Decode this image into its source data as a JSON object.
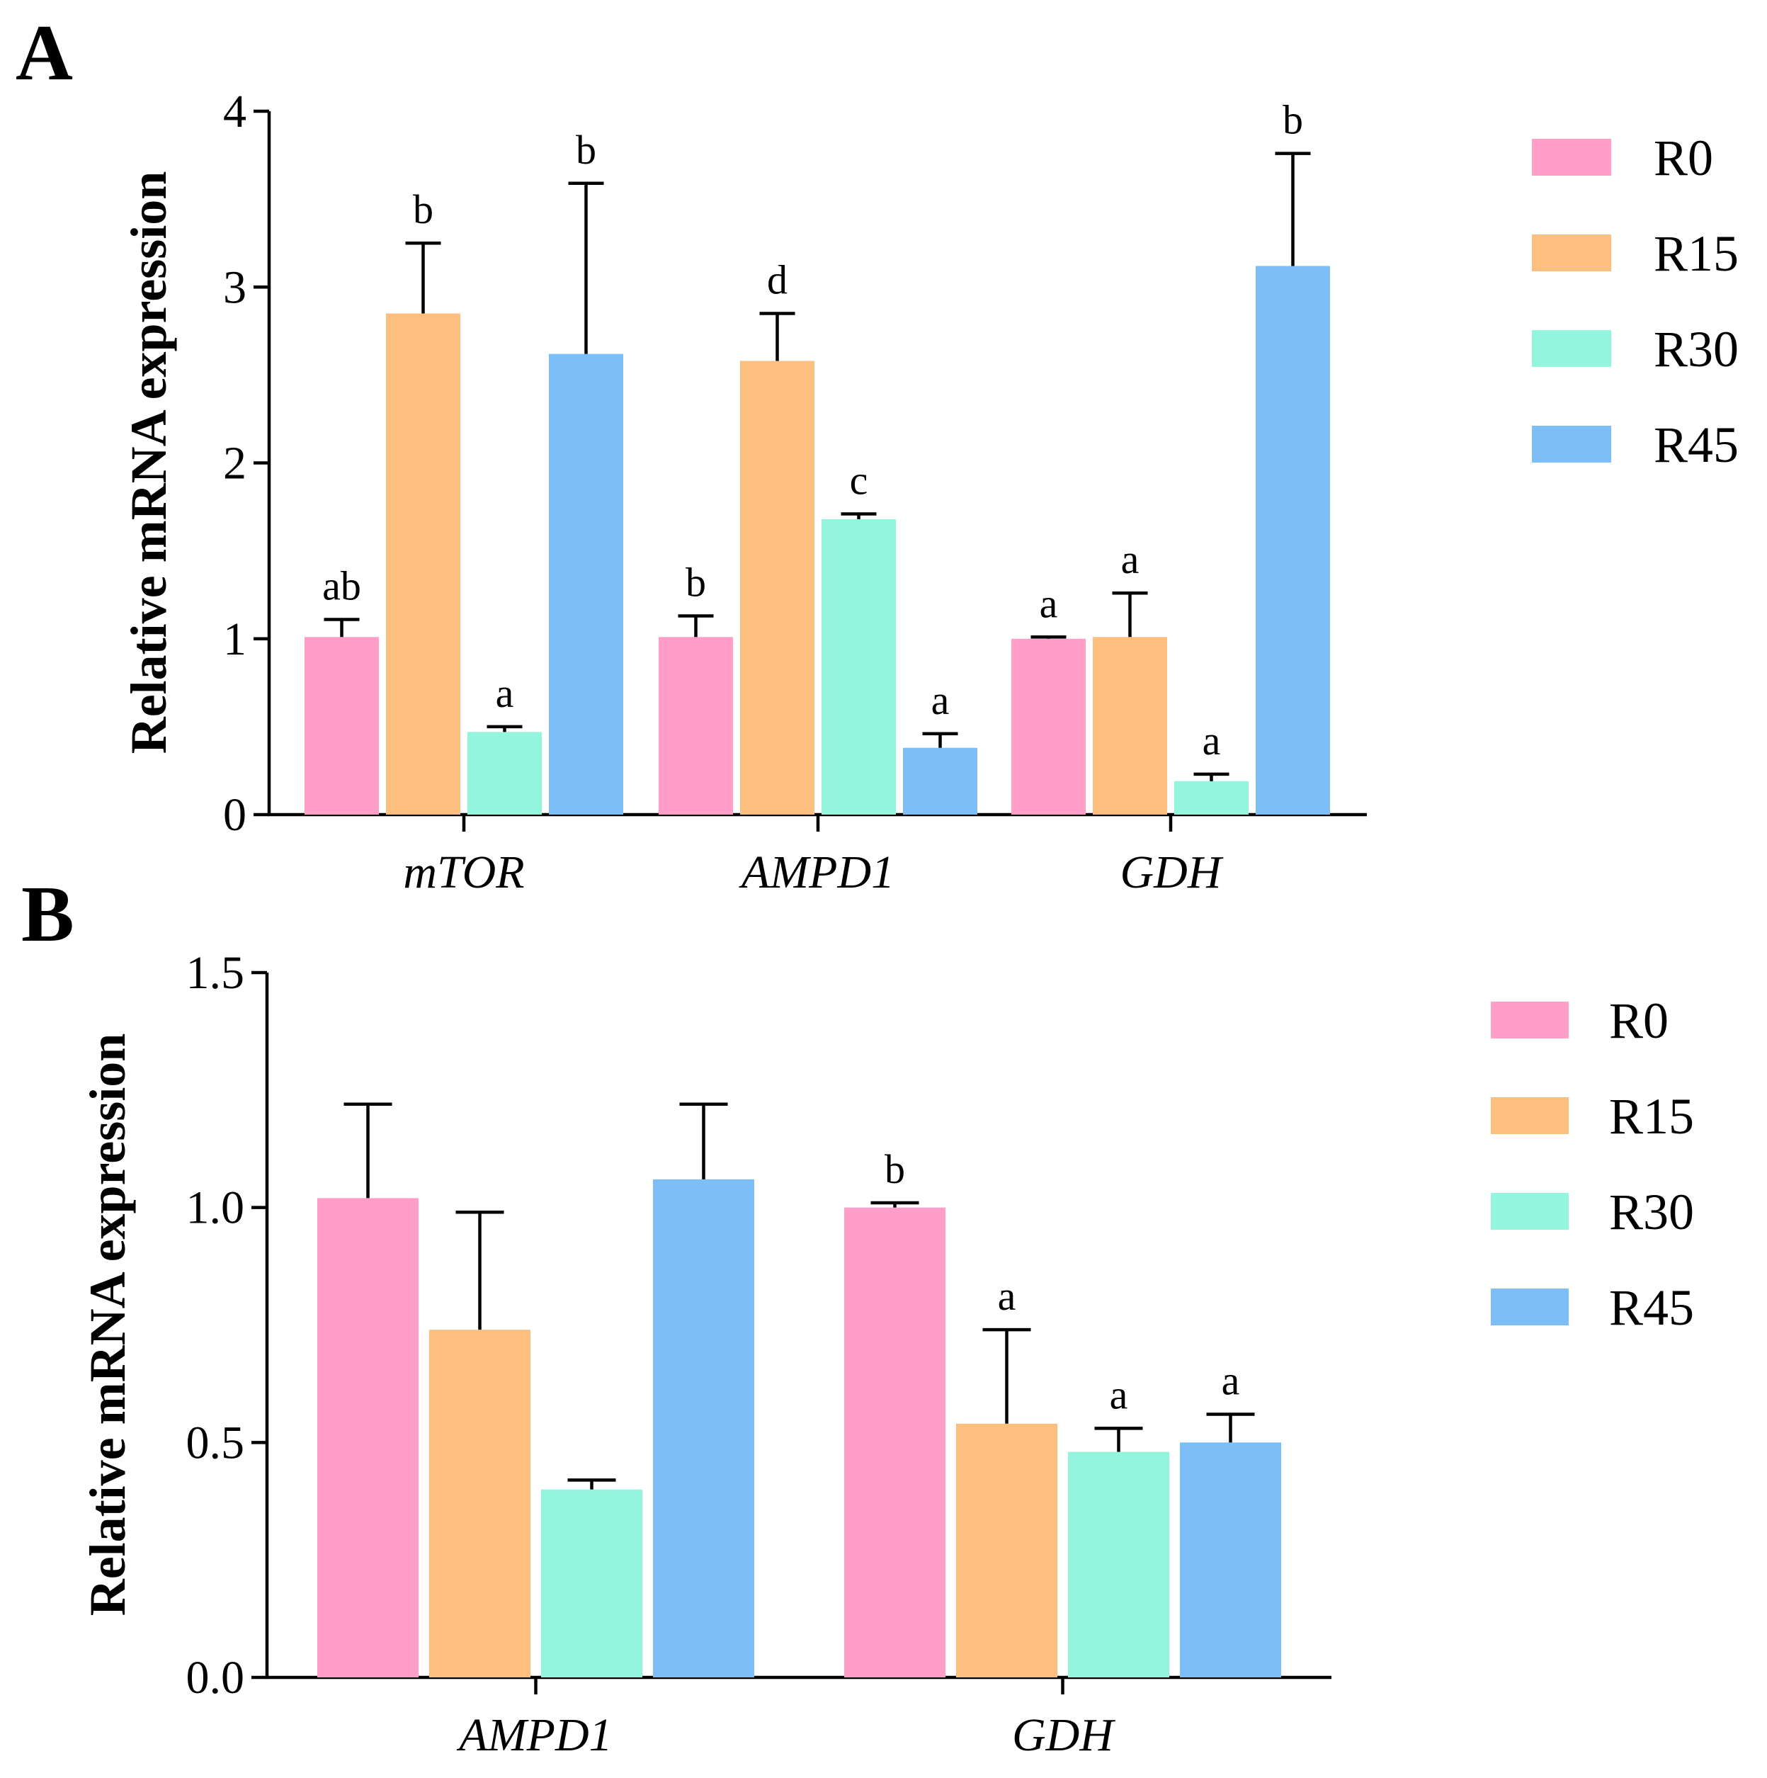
{
  "chart_data": [
    {
      "panel": "A",
      "type": "bar",
      "title": "",
      "xlabel": "",
      "ylabel": "Relative mRNA expression",
      "ylim": [
        0,
        4
      ],
      "yticks": [
        0,
        1,
        2,
        3,
        4
      ],
      "ytick_labels": [
        "0",
        "1",
        "2",
        "3",
        "4"
      ],
      "categories": [
        "mTOR",
        "AMPD1",
        "GDH"
      ],
      "series": [
        {
          "name": "R0",
          "color": "#ff9ec8",
          "values": [
            1.01,
            1.01,
            1.0
          ],
          "errors": [
            0.1,
            0.12,
            0.01
          ],
          "significance": [
            "ab",
            "b",
            "a"
          ]
        },
        {
          "name": "R15",
          "color": "#fdbf80",
          "values": [
            2.85,
            2.58,
            1.01
          ],
          "errors": [
            0.4,
            0.27,
            0.25
          ],
          "significance": [
            "b",
            "d",
            "a"
          ]
        },
        {
          "name": "R30",
          "color": "#93f5de",
          "values": [
            0.47,
            1.68,
            0.19
          ],
          "errors": [
            0.03,
            0.03,
            0.04
          ],
          "significance": [
            "a",
            "c",
            "a"
          ]
        },
        {
          "name": "R45",
          "color": "#7dbef7",
          "values": [
            2.62,
            0.38,
            3.12
          ],
          "errors": [
            0.97,
            0.08,
            0.64
          ],
          "significance": [
            "b",
            "a",
            "b"
          ]
        }
      ]
    },
    {
      "panel": "B",
      "type": "bar",
      "title": "",
      "xlabel": "",
      "ylabel": "Relative mRNA expression",
      "ylim": [
        0,
        1.5
      ],
      "yticks": [
        0,
        0.5,
        1.0,
        1.5
      ],
      "ytick_labels": [
        "0.0",
        "0.5",
        "1.0",
        "1.5"
      ],
      "categories": [
        "AMPD1",
        "GDH"
      ],
      "series": [
        {
          "name": "R0",
          "color": "#ff9ec8",
          "values": [
            1.02,
            1.0
          ],
          "errors": [
            0.2,
            0.01
          ],
          "significance": [
            "",
            "b"
          ]
        },
        {
          "name": "R15",
          "color": "#fdbf80",
          "values": [
            0.74,
            0.54
          ],
          "errors": [
            0.25,
            0.2
          ],
          "significance": [
            "",
            "a"
          ]
        },
        {
          "name": "R30",
          "color": "#93f5de",
          "values": [
            0.4,
            0.48
          ],
          "errors": [
            0.02,
            0.05
          ],
          "significance": [
            "",
            "a"
          ]
        },
        {
          "name": "R45",
          "color": "#7dbef7",
          "values": [
            1.06,
            0.5
          ],
          "errors": [
            0.16,
            0.06
          ],
          "significance": [
            "",
            "a"
          ]
        }
      ]
    }
  ]
}
